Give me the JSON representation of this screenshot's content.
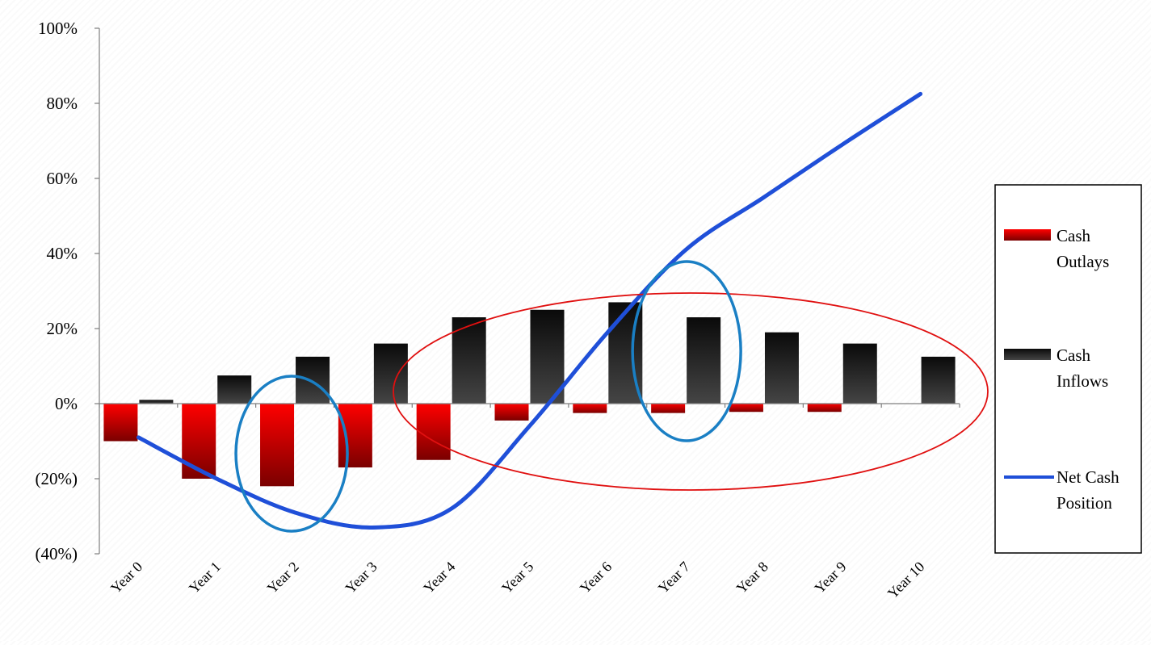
{
  "chart_data": {
    "type": "bar",
    "categories": [
      "Year 0",
      "Year 1",
      "Year 2",
      "Year 3",
      "Year 4",
      "Year 5",
      "Year 6",
      "Year 7",
      "Year 8",
      "Year 9",
      "Year 10"
    ],
    "series": [
      {
        "name": "Cash Outlays",
        "kind": "bar",
        "color": "#ff0000",
        "values": [
          -10,
          -20,
          -22,
          -17,
          -15,
          -4.5,
          -2.5,
          -2.5,
          -2.2,
          -2.2,
          0
        ]
      },
      {
        "name": "Cash Inflows",
        "kind": "bar",
        "color": "#262626",
        "values": [
          1,
          7.5,
          12.5,
          16,
          23,
          25,
          27,
          23,
          19,
          16,
          12.5
        ]
      },
      {
        "name": "Net Cash Position",
        "kind": "line",
        "color": "#1f4fd8",
        "values": [
          -9,
          -20,
          -29,
          -33,
          -28,
          -6,
          19,
          41,
          55,
          69,
          82.5
        ]
      }
    ],
    "y_ticks": [
      {
        "value": 100,
        "label": "100%"
      },
      {
        "value": 80,
        "label": "80%"
      },
      {
        "value": 60,
        "label": "60%"
      },
      {
        "value": 40,
        "label": "40%"
      },
      {
        "value": 20,
        "label": "20%"
      },
      {
        "value": 0,
        "label": "0%"
      },
      {
        "value": -20,
        "label": "(20%)"
      },
      {
        "value": -40,
        "label": "(40%)"
      }
    ],
    "ylim": [
      -40,
      100
    ],
    "title": "",
    "xlabel": "",
    "ylabel": "",
    "grid": false,
    "legend_position": "right",
    "legend": [
      {
        "series": "Cash Outlays",
        "lines": [
          "Cash",
          "Outlays"
        ]
      },
      {
        "series": "Cash Inflows",
        "lines": [
          "Cash",
          "Inflows"
        ]
      },
      {
        "series": "Net Cash Position",
        "lines": [
          "Net Cash",
          "Position"
        ]
      }
    ],
    "annotations": [
      {
        "shape": "ellipse",
        "color": "#1a7fc4",
        "around": "Year 2"
      },
      {
        "shape": "ellipse",
        "color": "#e01010",
        "around": "Year 5 – Year 10"
      },
      {
        "shape": "ellipse",
        "color": "#1a7fc4",
        "around": "Year 7"
      }
    ]
  }
}
